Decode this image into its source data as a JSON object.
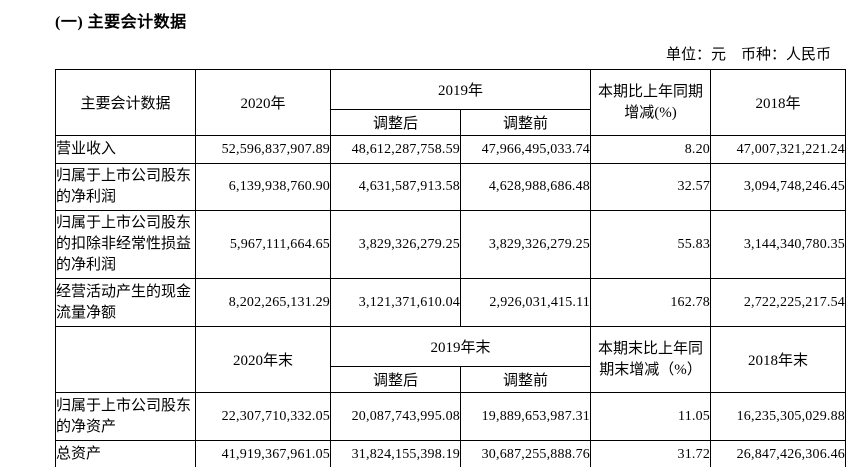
{
  "page": {
    "title": "(一) 主要会计数据",
    "unit_note": "单位：元　币种：人民币"
  },
  "table": {
    "period_header": {
      "label": "主要会计数据",
      "col_2020": "2020年",
      "col_2019": "2019年",
      "sub_adjusted": "调整后",
      "sub_before": "调整前",
      "col_change": "本期比上年同期增减(%)",
      "col_2018": "2018年"
    },
    "period_rows": [
      {
        "label": "营业收入",
        "y2020": "52,596,837,907.89",
        "y2019_adjusted": "48,612,287,758.59",
        "y2019_before": "47,966,495,033.74",
        "change": "8.20",
        "y2018": "47,007,321,221.24"
      },
      {
        "label": "归属于上市公司股东的净利润",
        "y2020": "6,139,938,760.90",
        "y2019_adjusted": "4,631,587,913.58",
        "y2019_before": "4,628,988,686.48",
        "change": "32.57",
        "y2018": "3,094,748,246.45"
      },
      {
        "label": "归属于上市公司股东的扣除非经常性损益的净利润",
        "y2020": "5,967,111,664.65",
        "y2019_adjusted": "3,829,326,279.25",
        "y2019_before": "3,829,326,279.25",
        "change": "55.83",
        "y2018": "3,144,340,780.35"
      },
      {
        "label": "经营活动产生的现金流量净额",
        "y2020": "8,202,265,131.29",
        "y2019_adjusted": "3,121,371,610.04",
        "y2019_before": "2,926,031,415.11",
        "change": "162.78",
        "y2018": "2,722,225,217.54"
      }
    ],
    "yearend_header": {
      "label": "",
      "col_2020": "2020年末",
      "col_2019": "2019年末",
      "sub_adjusted": "调整后",
      "sub_before": "调整前",
      "col_change": "本期末比上年同期末增减（%）",
      "col_2018": "2018年末"
    },
    "yearend_rows": [
      {
        "label": "归属于上市公司股东的净资产",
        "y2020": "22,307,710,332.05",
        "y2019_adjusted": "20,087,743,995.08",
        "y2019_before": "19,889,653,987.31",
        "change": "11.05",
        "y2018": "16,235,305,029.88"
      },
      {
        "label": "总资产",
        "y2020": "41,919,367,961.05",
        "y2019_adjusted": "31,824,155,398.19",
        "y2019_before": "30,687,255,888.76",
        "change": "31.72",
        "y2018": "26,847,426,306.46"
      }
    ]
  }
}
